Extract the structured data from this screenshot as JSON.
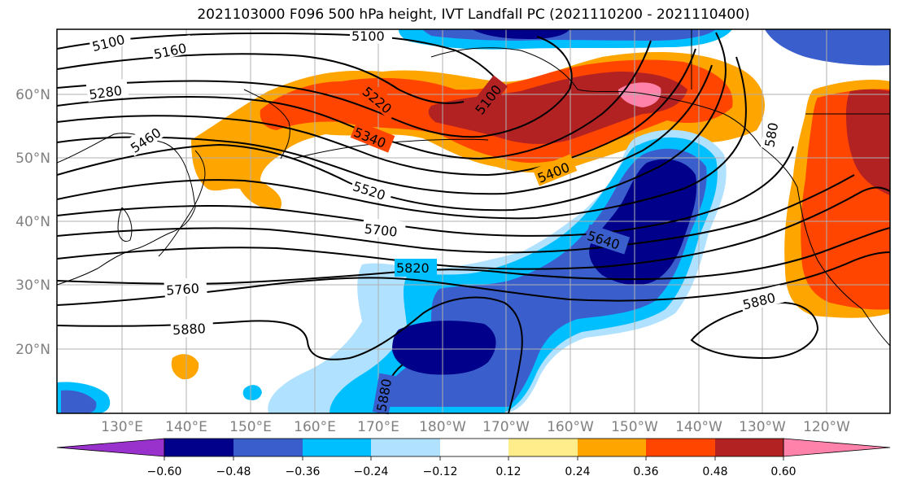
{
  "title": "2021103000 F096 500 hPa height, IVT Landfall PC (2021110200 - 2021110400)",
  "lat_labels": [
    "60°N",
    "50°N",
    "40°N",
    "30°N",
    "20°N"
  ],
  "lon_labels": [
    "130°E",
    "140°E",
    "150°E",
    "160°E",
    "170°E",
    "180°W",
    "170°W",
    "160°W",
    "150°W",
    "140°W",
    "130°W",
    "120°W"
  ],
  "contour_labels": [
    "5100",
    "5160",
    "5280",
    "5460",
    "5100",
    "5220",
    "5100",
    "5340",
    "5400",
    "5520",
    "5700",
    "5640",
    "5820",
    "5760",
    "5880",
    "5880",
    "5880",
    "580"
  ],
  "colorbar": {
    "ticks": [
      "−0.60",
      "−0.48",
      "−0.36",
      "−0.24",
      "−0.12",
      "0.12",
      "0.24",
      "0.36",
      "0.48",
      "0.60"
    ],
    "colors": [
      "#9932cc",
      "#00008b",
      "#3a5fcd",
      "#00bfff",
      "#b0e2ff",
      "#ffffff",
      "#ffec8b",
      "#ffa500",
      "#ff4500",
      "#b22222",
      "#ff82ab"
    ]
  },
  "palette": {
    "neg_60": "#00008b",
    "neg_48": "#3a5fcd",
    "neg_36": "#00bfff",
    "neg_24": "#b0e2ff",
    "pos_24": "#ffa500",
    "pos_36": "#ff4500",
    "pos_48": "#b22222",
    "pos_60": "#ff82ab"
  }
}
